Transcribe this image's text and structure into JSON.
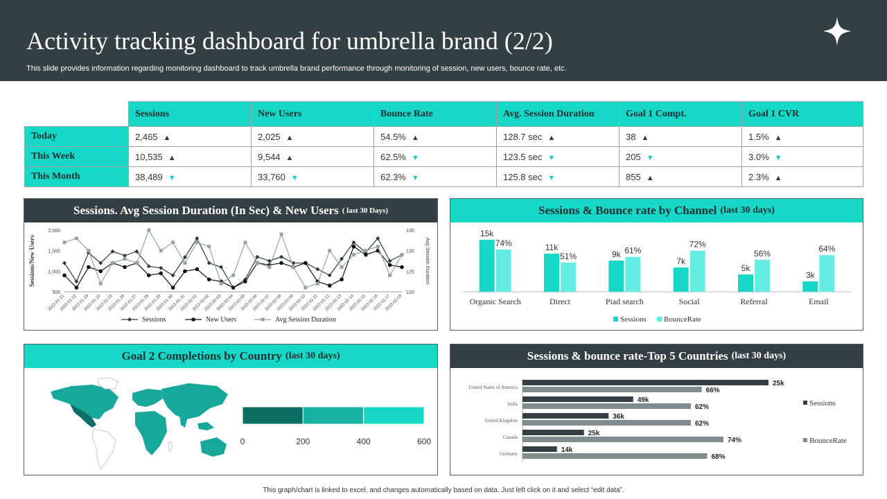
{
  "header": {
    "title": "Activity tracking dashboard for umbrella brand (2/2)",
    "subtitle": "This slide provides information regarding monitoring dashboard to track umbrella brand performance through monitoring of session, new users, bounce rate, etc."
  },
  "colors": {
    "dark": "#333f42",
    "teal": "#17d8c6",
    "teal_light": "#63ece2",
    "grey": "#7f8c8c",
    "trend_up": "#2b3b3e",
    "trend_down": "#17cdbd"
  },
  "kpi_table": {
    "columns": [
      "Sessions",
      "New Users",
      "Bounce Rate",
      "Avg. Session Duration",
      "Goal 1 Compt.",
      "Goal 1 CVR"
    ],
    "rows": [
      {
        "label": "Today",
        "cells": [
          {
            "value": "2,465",
            "trend": "up"
          },
          {
            "value": "2,025",
            "trend": "up"
          },
          {
            "value": "54.5%",
            "trend": "up"
          },
          {
            "value": "128.7 sec",
            "trend": "up"
          },
          {
            "value": "38",
            "trend": "up"
          },
          {
            "value": "1.5%",
            "trend": "up"
          }
        ]
      },
      {
        "label": "This Week",
        "cells": [
          {
            "value": "10,535",
            "trend": "up"
          },
          {
            "value": "9,544",
            "trend": "up"
          },
          {
            "value": "62.5%",
            "trend": "down"
          },
          {
            "value": "123.5 sec",
            "trend": "down"
          },
          {
            "value": "205",
            "trend": "down"
          },
          {
            "value": "3.0%",
            "trend": "down"
          }
        ]
      },
      {
        "label": "This Month",
        "cells": [
          {
            "value": "38,489",
            "trend": "down"
          },
          {
            "value": "33,760",
            "trend": "down"
          },
          {
            "value": "62.3%",
            "trend": "down"
          },
          {
            "value": "125.8 sec",
            "trend": "down"
          },
          {
            "value": "855",
            "trend": "up"
          },
          {
            "value": "2.3%",
            "trend": "up"
          }
        ]
      }
    ]
  },
  "panels": {
    "sessions_duration": {
      "title": "Sessions. Avg Session Duration (In  Sec) & New Users",
      "sub": "( last 30 Days)"
    },
    "channel": {
      "title": "Sessions & Bounce rate by Channel",
      "sub": "(last 30 days)"
    },
    "goal2": {
      "title": "Goal 2 Completions by Country",
      "sub": "(last 30 days)"
    },
    "countries": {
      "title": "Sessions & bounce rate-Top 5 Countries",
      "sub": "(last 30 days)"
    }
  },
  "footnote": "This graph/chart is linked to excel, and changes automatically based on data. Just left click on it and select “edit data”.",
  "chart_data": [
    {
      "type": "line",
      "title": "Sessions. Avg Session Duration (In  Sec) & New Users ( last 30 Days)",
      "x": [
        "2022-01-21",
        "2022-01-22",
        "2022-01-23",
        "2022-01-24",
        "2022-01-25",
        "2022-01-26",
        "2022-01-27",
        "2022-01-28",
        "2022-01-29",
        "2022-01-30",
        "2022-01-31",
        "2022-02-01",
        "2022-02-02",
        "2022-02-03",
        "2022-02-04",
        "2022-02-05",
        "2022-02-06",
        "2022-02-07",
        "2022-02-08",
        "2022-02-09",
        "2022-02-10",
        "2022-02-11",
        "2022-02-12",
        "2022-02-13",
        "2022-02-14",
        "2022-02-15",
        "2022-02-16",
        "2022-02-17",
        "2022-02-18"
      ],
      "ylabel": "Sessions/New Users",
      "y2label": "Avg  Session Duration",
      "ylim": [
        500,
        2000
      ],
      "y_ticks": [
        "2,000",
        "1,500",
        "1,000",
        "500"
      ],
      "y2lim": [
        120,
        135
      ],
      "y2_ticks": [
        "135",
        "130",
        "125",
        "120"
      ],
      "series": [
        {
          "name": "Sessions",
          "axis": "left",
          "values": [
            1200,
            750,
            1450,
            1200,
            1480,
            1380,
            1480,
            1120,
            1080,
            900,
            1340,
            1800,
            1200,
            1100,
            600,
            800,
            1350,
            1250,
            1350,
            1200,
            1200,
            1050,
            900,
            1300,
            1700,
            1460,
            1800,
            1250,
            1400
          ]
        },
        {
          "name": "New Users",
          "axis": "left",
          "values": [
            900,
            600,
            1100,
            1000,
            1200,
            1100,
            1200,
            900,
            950,
            600,
            1000,
            1050,
            800,
            750,
            600,
            750,
            1200,
            1150,
            1200,
            1100,
            1200,
            750,
            650,
            800,
            1600,
            1400,
            1500,
            1150,
            1100
          ]
        },
        {
          "name": "Avg Session Duration",
          "axis": "right",
          "values": [
            132,
            133,
            130,
            122,
            127,
            128,
            127,
            135,
            130,
            132,
            127,
            132,
            131,
            122,
            124,
            132,
            127,
            126,
            134,
            126,
            121,
            122,
            130,
            126,
            129,
            130,
            131,
            124,
            129
          ]
        }
      ]
    },
    {
      "type": "bar",
      "title": "Sessions & Bounce rate by Channel (last 30 days)",
      "categories": [
        "Organic Search",
        "Direct",
        "Piad search",
        "Social",
        "Referral",
        "Email"
      ],
      "series": [
        {
          "name": "Sessions",
          "values": [
            15,
            11,
            9,
            7,
            5,
            3
          ],
          "labels": [
            "15k",
            "11k",
            "9k",
            "7k",
            "5k",
            "3k"
          ]
        },
        {
          "name": "BounceRate",
          "values": [
            74,
            51,
            61,
            72,
            56,
            64
          ],
          "labels": [
            "74%",
            "51%",
            "61%",
            "72%",
            "56%",
            "64%"
          ]
        }
      ]
    },
    {
      "type": "bar",
      "title": "Goal 2 Completions by Country (last 30 days)",
      "orientation": "horizontal-stacked",
      "x_ticks": [
        "0",
        "200",
        "400",
        "600"
      ],
      "xlim": [
        0,
        600
      ],
      "segments": [
        200,
        200,
        200
      ]
    },
    {
      "type": "bar",
      "orientation": "horizontal",
      "title": "Sessions & bounce rate-Top 5 Countries (last 30 days)",
      "categories": [
        "United States of America",
        "India",
        "United Kingdom",
        "Canada",
        "Germany"
      ],
      "series": [
        {
          "name": "Sessions",
          "values": [
            25,
            49,
            36,
            25,
            14
          ],
          "labels": [
            "25k",
            "49k",
            "36k",
            "25k",
            "14k"
          ],
          "bar_length": [
            100,
            45,
            35,
            25,
            14
          ]
        },
        {
          "name": "BounceRate",
          "values": [
            66,
            62,
            62,
            74,
            68
          ],
          "labels": [
            "66%",
            "62%",
            "62%",
            "74%",
            "68%"
          ]
        }
      ]
    }
  ]
}
